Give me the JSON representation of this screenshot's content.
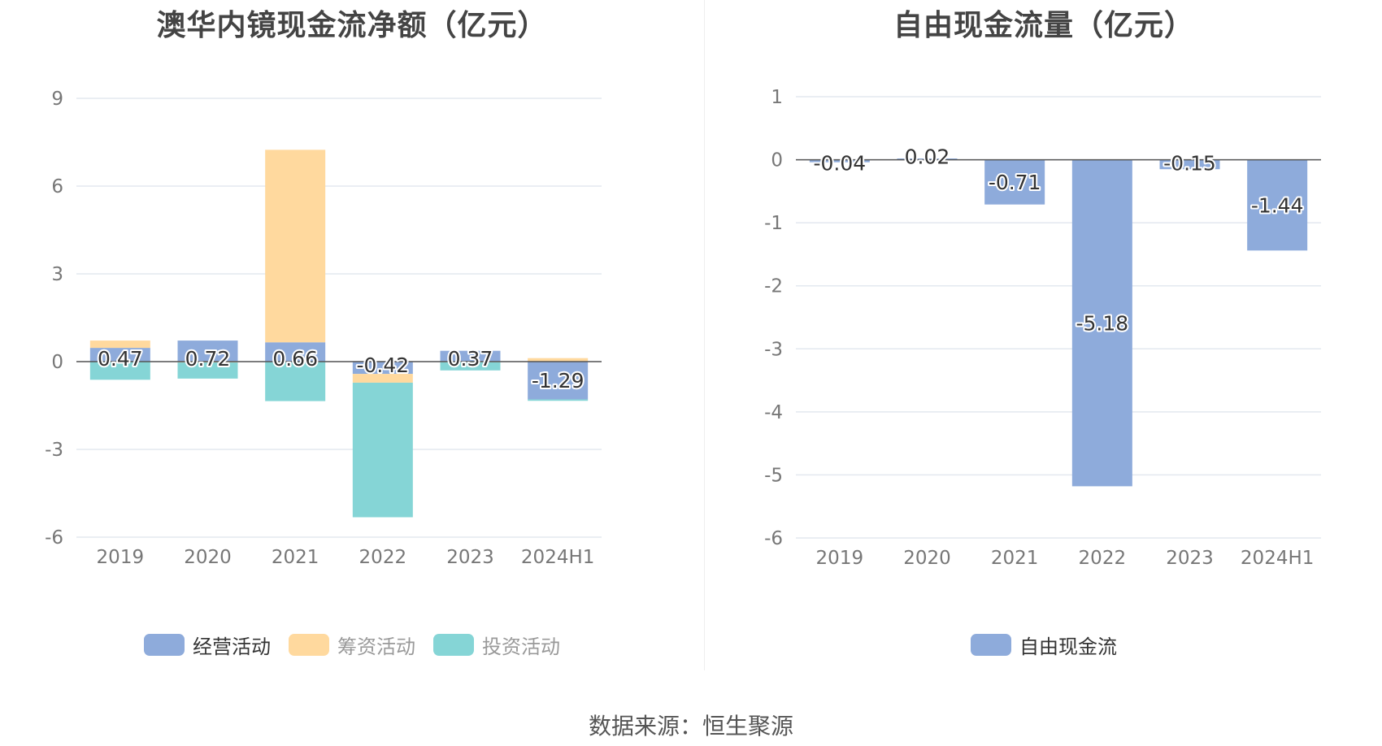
{
  "source": "数据来源：恒生聚源",
  "chart_data": [
    {
      "type": "bar",
      "stacked": true,
      "title": "澳华内镜现金流净额（亿元）",
      "categories": [
        "2019",
        "2020",
        "2021",
        "2022",
        "2023",
        "2024H1"
      ],
      "yticks": [
        9,
        6,
        3,
        0,
        -3,
        -6
      ],
      "ylim": [
        -6,
        9
      ],
      "grid": true,
      "legend_position": "bottom",
      "series": [
        {
          "name": "经营活动",
          "color": "#8eabdb",
          "values": [
            0.47,
            0.72,
            0.66,
            -0.42,
            0.37,
            -1.29
          ],
          "labels": [
            "0.47",
            "0.72",
            "0.66",
            "-0.42",
            "0.37",
            "-1.29"
          ]
        },
        {
          "name": "筹资活动",
          "color": "#ffd99e",
          "values": [
            0.25,
            -0.03,
            6.58,
            -0.3,
            -0.02,
            0.12
          ]
        },
        {
          "name": "投资活动",
          "color": "#85d5d6",
          "values": [
            -0.62,
            -0.55,
            -1.35,
            -4.6,
            -0.28,
            -0.05
          ]
        }
      ]
    },
    {
      "type": "bar",
      "title": "自由现金流量（亿元）",
      "categories": [
        "2019",
        "2020",
        "2021",
        "2022",
        "2023",
        "2024H1"
      ],
      "yticks": [
        1,
        0,
        -1,
        -2,
        -3,
        -4,
        -5,
        -6
      ],
      "ylim": [
        -6,
        1
      ],
      "grid": true,
      "legend_position": "bottom",
      "series": [
        {
          "name": "自由现金流",
          "color": "#8eabdb",
          "values": [
            -0.04,
            0.02,
            -0.71,
            -5.18,
            -0.15,
            -1.44
          ],
          "labels": [
            "-0.04",
            "0.02",
            "-0.71",
            "-5.18",
            "-0.15",
            "-1.44"
          ]
        }
      ]
    }
  ]
}
